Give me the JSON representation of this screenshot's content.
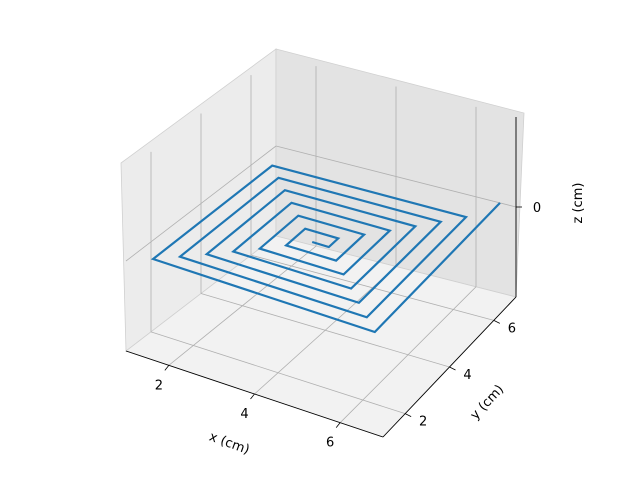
{
  "chart_data": {
    "type": "line3d",
    "title": "",
    "xlabel": "x (cm)",
    "ylabel": "y (cm)",
    "zlabel": "z (cm)",
    "xticks": [
      2,
      4,
      6
    ],
    "xtick_labels": [
      "2",
      "4",
      "6"
    ],
    "yticks": [
      2,
      4,
      6
    ],
    "ytick_labels": [
      "2",
      "4",
      "6"
    ],
    "zticks": [
      0
    ],
    "ztick_labels": [
      "0"
    ],
    "grid": true,
    "color": "#1f77b4",
    "series": [
      {
        "type": "square-spiral",
        "z": 0,
        "x": [
          3.8,
          4.2,
          4.2,
          3.4,
          3.4,
          4.6,
          4.6,
          3.0,
          3.0,
          5.0,
          5.0,
          2.6,
          2.6,
          5.4,
          5.4,
          2.2,
          2.2,
          5.8,
          5.8,
          1.8,
          1.8,
          6.2,
          6.2,
          1.4,
          1.4,
          6.6,
          6.6
        ],
        "y": [
          3.8,
          3.8,
          4.2,
          4.2,
          3.4,
          3.4,
          4.6,
          4.6,
          3.0,
          3.0,
          5.0,
          5.0,
          2.6,
          2.6,
          5.4,
          5.4,
          2.2,
          2.2,
          5.8,
          5.8,
          1.8,
          1.8,
          6.2,
          6.2,
          1.4,
          1.4,
          7.0
        ]
      }
    ]
  }
}
